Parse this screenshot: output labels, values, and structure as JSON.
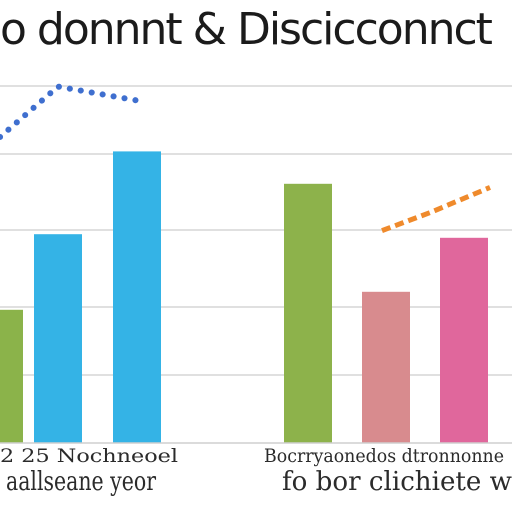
{
  "title": "o donnnt & Discicconnct",
  "chart_data": {
    "type": "bar",
    "title": "o donnnt & Discicconnct",
    "ylim": [
      0,
      100
    ],
    "grid": true,
    "legend": "none",
    "groups": [
      {
        "bars": [
          {
            "value": 37,
            "color": "#8bb34a"
          },
          {
            "value": 58,
            "color": "#34b3e6"
          },
          {
            "value": 81,
            "color": "#34b3e6"
          }
        ],
        "label_line1": "2 25 Nochneoel",
        "label_line2": "aallseane yeor",
        "trend": {
          "values": [
            85,
            99,
            95
          ],
          "color": "#3f6fcf",
          "style": "dotted"
        }
      },
      {
        "bars": [
          {
            "value": 72,
            "color": "#8db24b"
          },
          {
            "value": 42,
            "color": "#d88b8e"
          },
          {
            "value": 57,
            "color": "#e0679c"
          }
        ],
        "label_line1": "Bocrryaonedos dtronnonne",
        "label_line2": "fo bor clichiete w",
        "trend": {
          "values": [
            59,
            64,
            71
          ],
          "color": "#ef8a2c",
          "style": "dashed"
        }
      }
    ]
  }
}
